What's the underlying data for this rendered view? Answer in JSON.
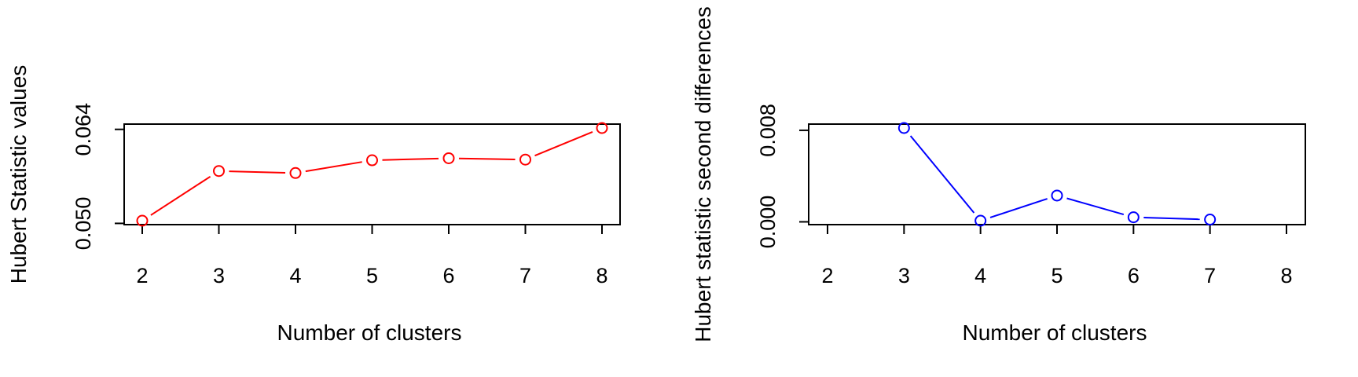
{
  "chart_data": [
    {
      "type": "line",
      "title": "",
      "xlabel": "Number of clusters",
      "ylabel": "Hubert Statistic values",
      "x": [
        2,
        3,
        4,
        5,
        6,
        7,
        8
      ],
      "series": [
        {
          "values": [
            0.0504,
            0.0578,
            0.0575,
            0.0594,
            0.0597,
            0.0595,
            0.0642
          ],
          "color": "#ff0000"
        }
      ],
      "xticks": [
        "2",
        "3",
        "4",
        "5",
        "6",
        "7",
        "8"
      ],
      "yticks": [
        {
          "value": 0.05,
          "label": "0.050"
        },
        {
          "value": 0.064,
          "label": "0.064"
        }
      ],
      "xlim": [
        2,
        8
      ],
      "ylim": [
        0.0504,
        0.0642
      ],
      "grid": false,
      "marker": "open-circle"
    },
    {
      "type": "line",
      "title": "",
      "xlabel": "Number of clusters",
      "ylabel": "Hubert statistic second differences",
      "x": [
        2,
        3,
        4,
        5,
        6,
        7,
        8
      ],
      "series": [
        {
          "values": [
            null,
            0.0082,
            0.0001,
            0.0023,
            0.0004,
            0.0002,
            null
          ],
          "color": "#0000ff"
        }
      ],
      "xticks": [
        "2",
        "3",
        "4",
        "5",
        "6",
        "7",
        "8"
      ],
      "yticks": [
        {
          "value": 0,
          "label": "0.000"
        },
        {
          "value": 0.008,
          "label": "0.008"
        }
      ],
      "xlim": [
        2,
        8
      ],
      "ylim": [
        0.0001,
        0.0082
      ],
      "grid": false,
      "marker": "open-circle"
    }
  ]
}
